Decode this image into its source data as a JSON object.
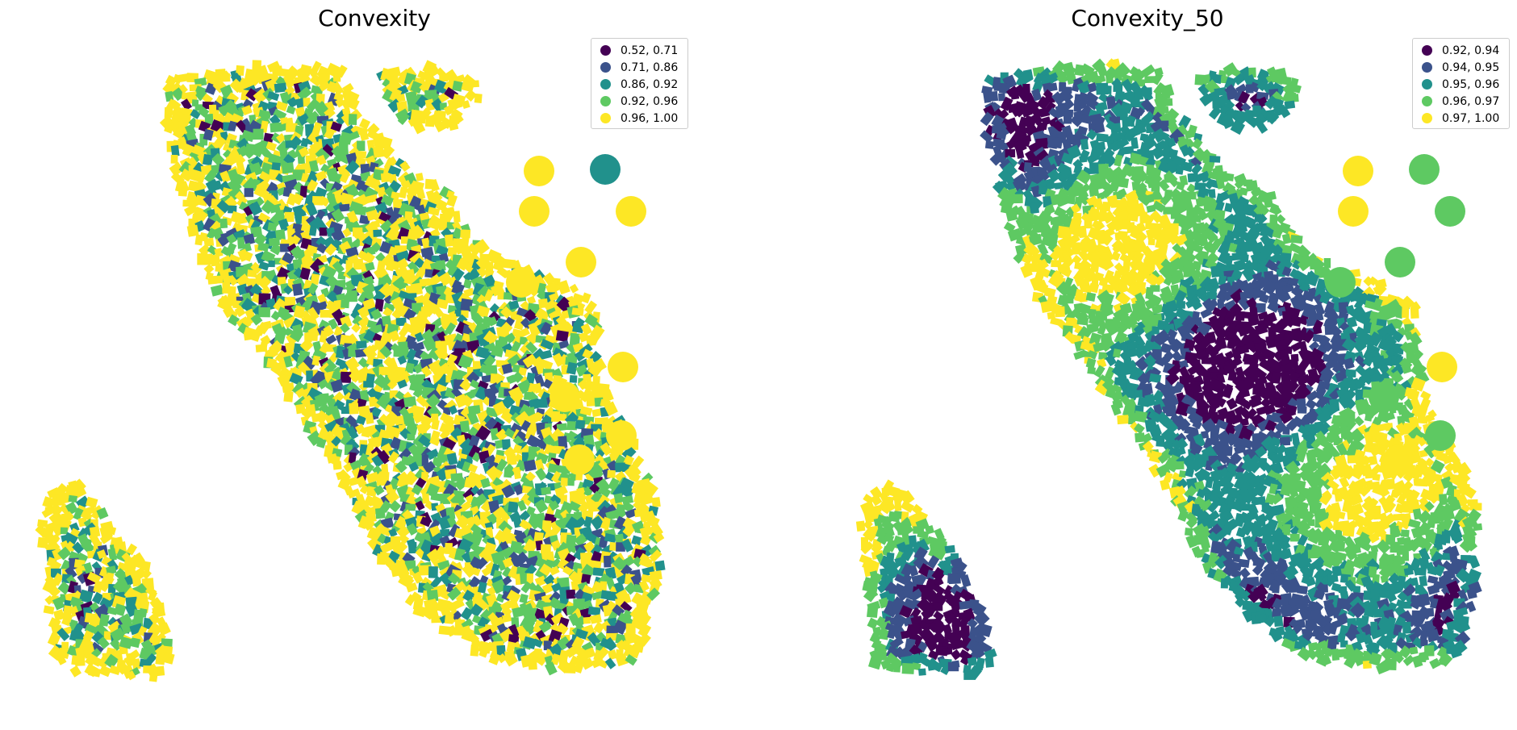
{
  "figure": {
    "panels": [
      {
        "title": "Convexity",
        "legend": [
          {
            "label": "0.52, 0.71",
            "color": "#440154"
          },
          {
            "label": "0.71, 0.86",
            "color": "#3b528b"
          },
          {
            "label": "0.86, 0.92",
            "color": "#21918c"
          },
          {
            "label": "0.92, 0.96",
            "color": "#5ec962"
          },
          {
            "label": "0.96, 1.00",
            "color": "#fde725"
          }
        ]
      },
      {
        "title": "Convexity_50",
        "legend": [
          {
            "label": "0.92, 0.94",
            "color": "#440154"
          },
          {
            "label": "0.94, 0.95",
            "color": "#3b528b"
          },
          {
            "label": "0.95, 0.96",
            "color": "#21918c"
          },
          {
            "label": "0.96, 0.97",
            "color": "#5ec962"
          },
          {
            "label": "0.97, 1.00",
            "color": "#fde725"
          }
        ]
      }
    ]
  },
  "colormap": "viridis",
  "classification": "quantiles (5 classes)"
}
